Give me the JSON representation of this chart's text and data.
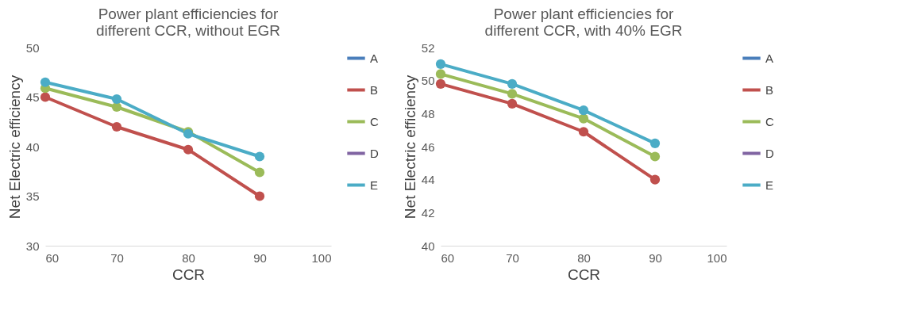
{
  "chart_data": [
    {
      "type": "line",
      "title": "Power plant efficiencies for different CCR, without EGR",
      "xlabel": "CCR",
      "ylabel": "Net Electric efficiency",
      "x": [
        60,
        70,
        80,
        90
      ],
      "xlim": [
        60,
        100
      ],
      "xticks": [
        60,
        70,
        80,
        90,
        100
      ],
      "ylim": [
        30,
        50
      ],
      "yticks": [
        30,
        35,
        40,
        45,
        50
      ],
      "grid": false,
      "legend": "right",
      "marker": "circle",
      "series": [
        {
          "name": "A",
          "color": "#4a7ebb",
          "values": [
            null,
            null,
            null,
            null
          ]
        },
        {
          "name": "B",
          "color": "#c0504d",
          "values": [
            45.0,
            42.0,
            39.7,
            35.0
          ]
        },
        {
          "name": "C",
          "color": "#9bbb59",
          "values": [
            45.9,
            44.0,
            41.5,
            37.4
          ]
        },
        {
          "name": "D",
          "color": "#8064a2",
          "values": [
            null,
            null,
            null,
            null
          ]
        },
        {
          "name": "E",
          "color": "#4bacc6",
          "values": [
            46.5,
            44.8,
            41.3,
            39.0
          ]
        }
      ]
    },
    {
      "type": "line",
      "title": "Power plant efficiencies for different CCR, with 40% EGR",
      "xlabel": "CCR",
      "ylabel": "Net Electric efficiency",
      "x": [
        60,
        70,
        80,
        90
      ],
      "xlim": [
        60,
        100
      ],
      "xticks": [
        60,
        70,
        80,
        90,
        100
      ],
      "ylim": [
        40,
        52
      ],
      "yticks": [
        40,
        42,
        44,
        46,
        48,
        50,
        52
      ],
      "grid": false,
      "legend": "right",
      "marker": "circle",
      "series": [
        {
          "name": "A",
          "color": "#4a7ebb",
          "values": [
            null,
            null,
            null,
            null
          ]
        },
        {
          "name": "B",
          "color": "#c0504d",
          "values": [
            49.8,
            48.6,
            46.9,
            44.0
          ]
        },
        {
          "name": "C",
          "color": "#9bbb59",
          "values": [
            50.4,
            49.2,
            47.7,
            45.4
          ]
        },
        {
          "name": "D",
          "color": "#8064a2",
          "values": [
            null,
            null,
            null,
            null
          ]
        },
        {
          "name": "E",
          "color": "#4bacc6",
          "values": [
            51.0,
            49.8,
            48.2,
            46.2
          ]
        }
      ]
    }
  ]
}
